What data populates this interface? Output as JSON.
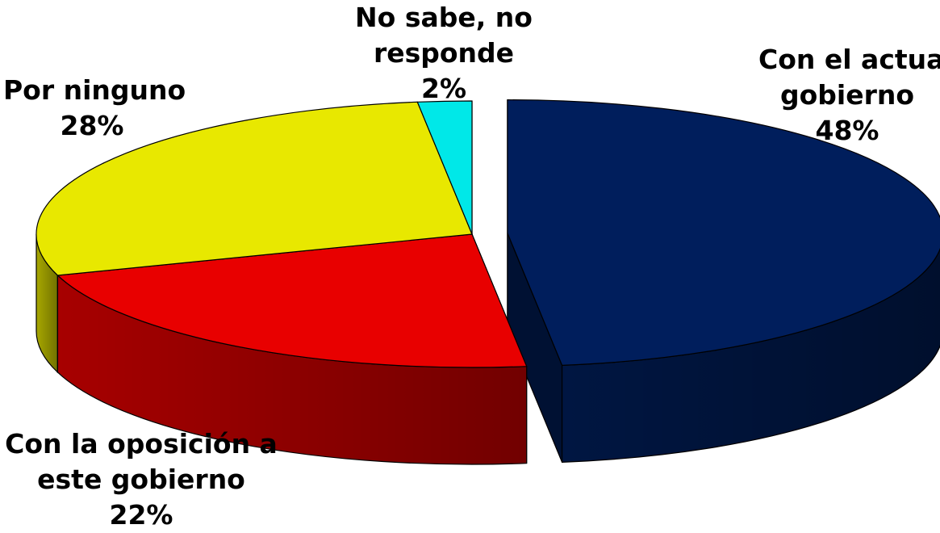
{
  "chart_data": {
    "type": "pie",
    "title": "",
    "legend": "none",
    "unit": "%",
    "slices": [
      {
        "name": "Con el actual gobierno",
        "value": 48,
        "label_lines": [
          "Con el actual",
          "gobierno",
          "48%"
        ],
        "color": "#001E5C",
        "exploded": true
      },
      {
        "name": "Con la oposición a este gobierno",
        "value": 22,
        "label_lines": [
          "Con la oposición a",
          "este gobierno",
          "22%"
        ],
        "color": "#E80000",
        "exploded": false
      },
      {
        "name": "Por ninguno",
        "value": 28,
        "label_lines": [
          "Por ninguno",
          "28%"
        ],
        "color": "#E8E800",
        "exploded": false
      },
      {
        "name": "No sabe, no responde",
        "value": 2,
        "label_lines": [
          "No sabe, no",
          "responde",
          "2%"
        ],
        "color": "#00E8E8",
        "exploded": false
      }
    ]
  }
}
